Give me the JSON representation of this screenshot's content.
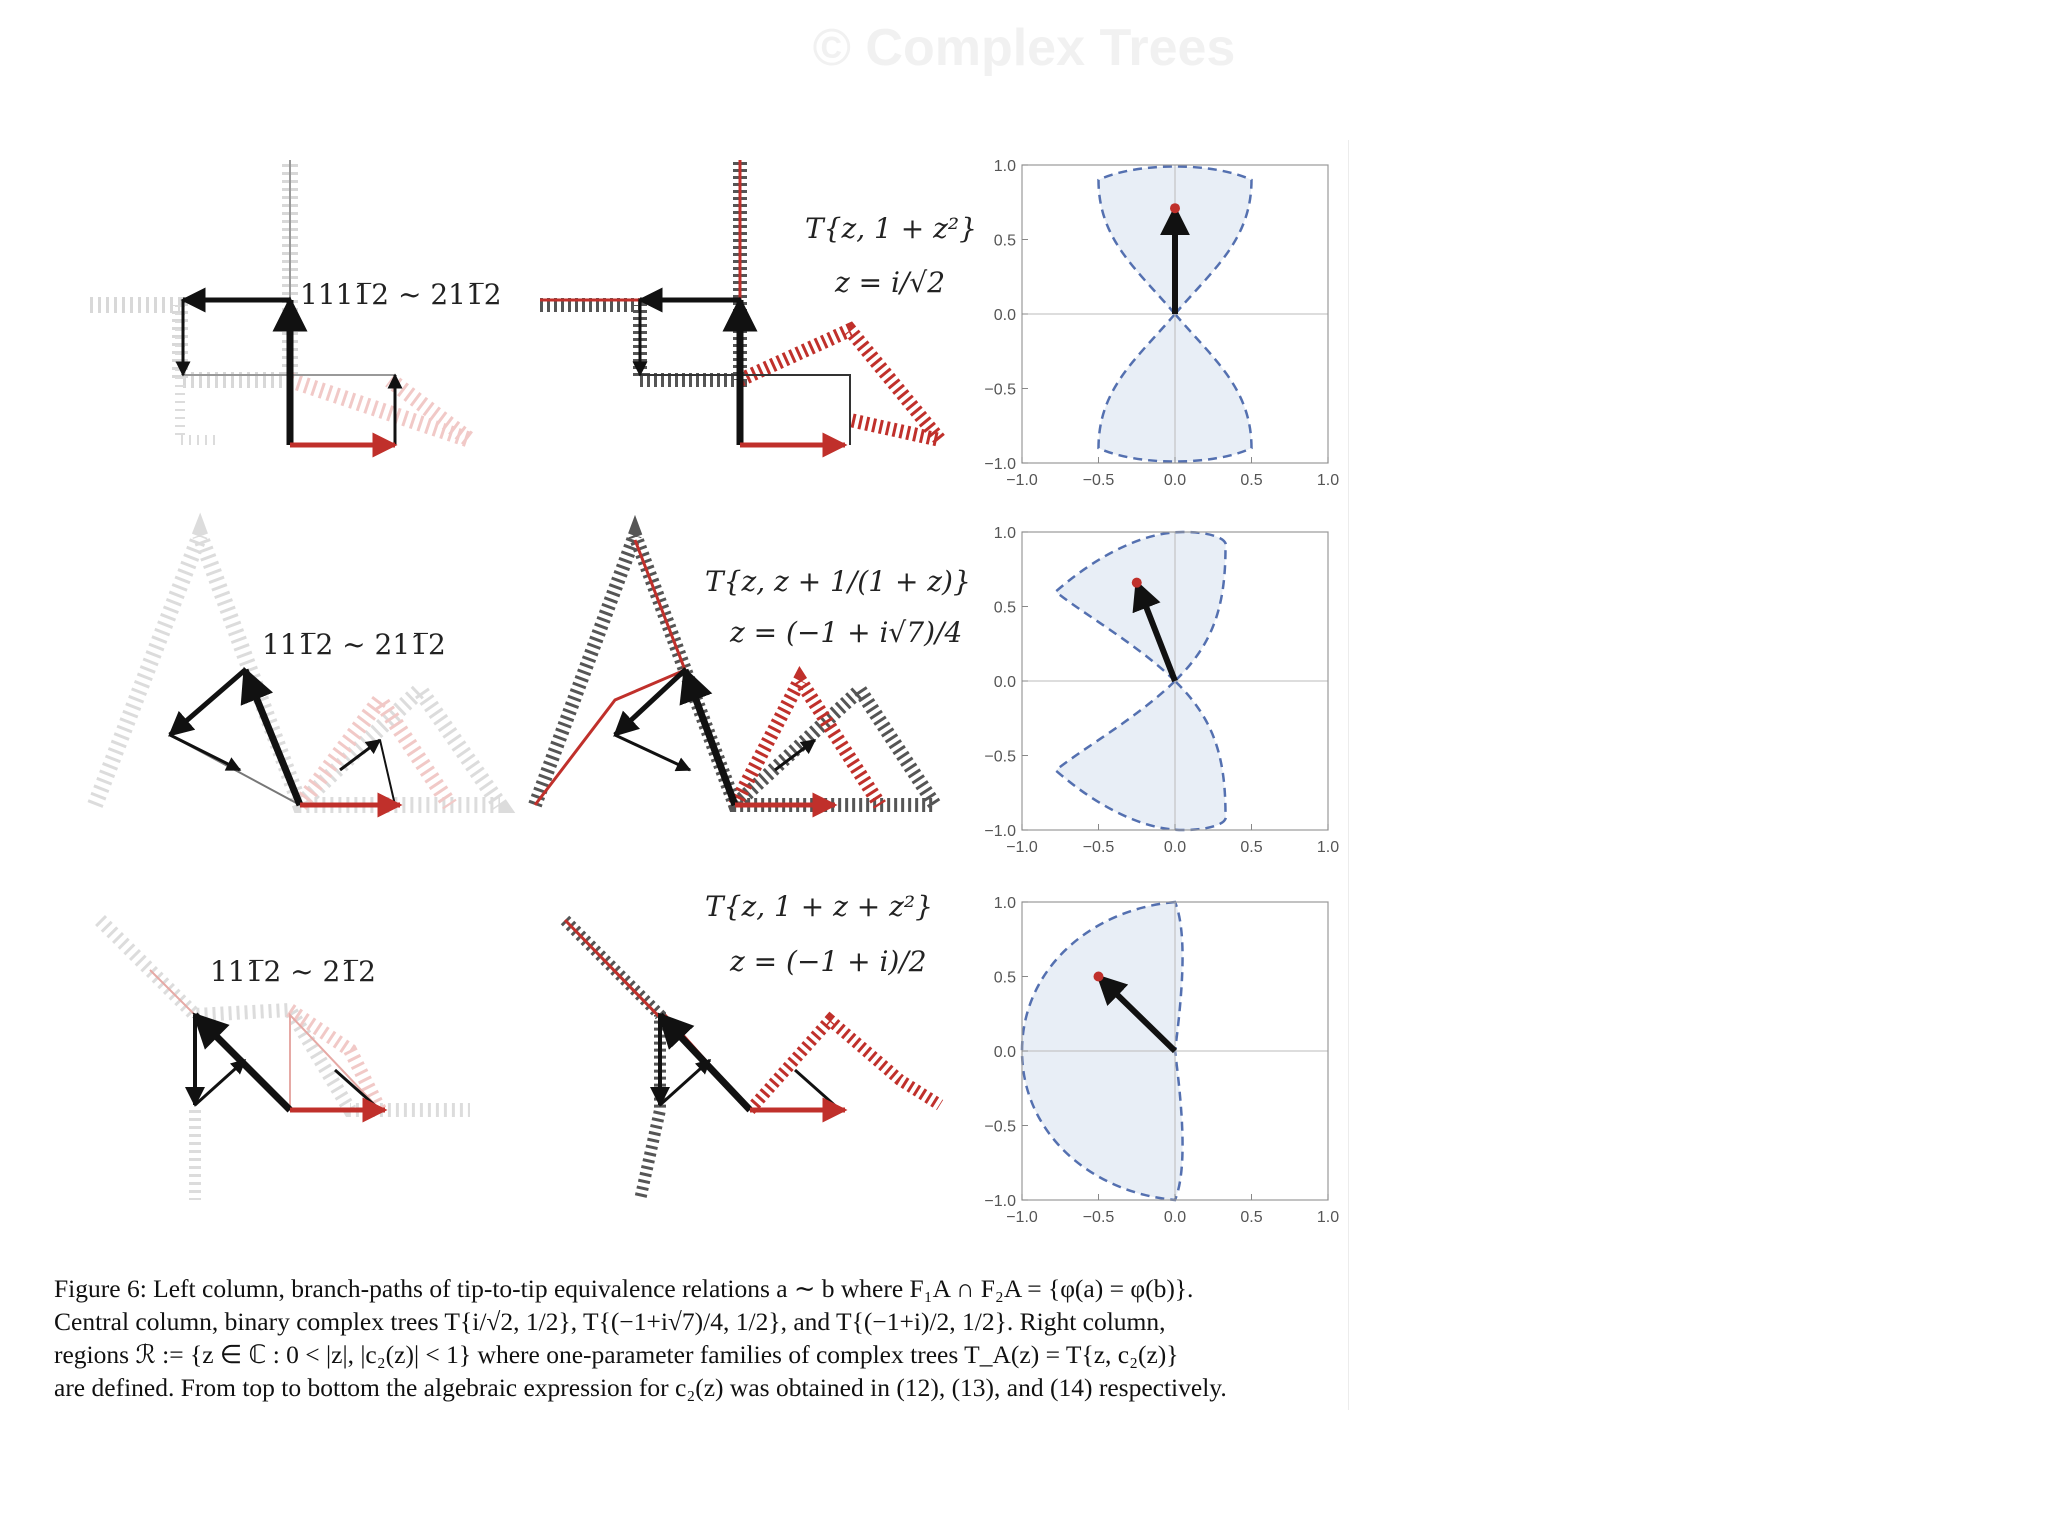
{
  "watermark": "© Complex Trees",
  "figure": {
    "rows": [
      {
        "relation": "1111̅2 ~ 211̅2",
        "tree_name": "T{z, 1 + z²}",
        "z_value": "z = i/√2",
        "region_point": {
          "re": 0.0,
          "im": 0.71
        }
      },
      {
        "relation": "111̅2 ~ 211̅2",
        "tree_name": "T{z, z + 1/(1 + z)}",
        "z_value": "z = (−1 + i√7)/4",
        "region_point": {
          "re": -0.25,
          "im": 0.66
        }
      },
      {
        "relation": "111̅2 ~ 21̅2",
        "tree_name": "T{z, 1 + z + z²}",
        "z_value": "z = (−1 + i)/2",
        "region_point": {
          "re": -0.5,
          "im": 0.5
        }
      }
    ],
    "axis_ticks": {
      "y": [
        "1.0",
        "0.5",
        "0.0",
        "−0.5",
        "−1.0"
      ],
      "x": [
        "−1.0",
        "−0.5",
        "0.0",
        "0.5",
        "1.0"
      ]
    },
    "colors": {
      "red": "#c0302b",
      "black": "#111111",
      "region_fill": "#e8eef6",
      "region_border": "#5470b0"
    }
  },
  "caption": {
    "lines": [
      "Figure 6: Left column, branch-paths of tip-to-tip equivalence relations a ∼ b where F₁A ∩ F₂A = {φ(a) = φ(b)}.",
      "Central column, binary complex trees T{i/√2, 1/2}, T{(−1+i√7)/4, 1/2}, and T{(−1+i)/2, 1/2}. Right column,",
      "regions ℛ := {z ∈ ℂ : 0 < |z|, |c₂(z)| < 1} where one-parameter families of complex trees T_A(z) = T{z, c₂(z)}",
      "are defined. From top to bottom the algebraic expression for c₂(z) was obtained in (12), (13), and (14) respectively."
    ]
  }
}
